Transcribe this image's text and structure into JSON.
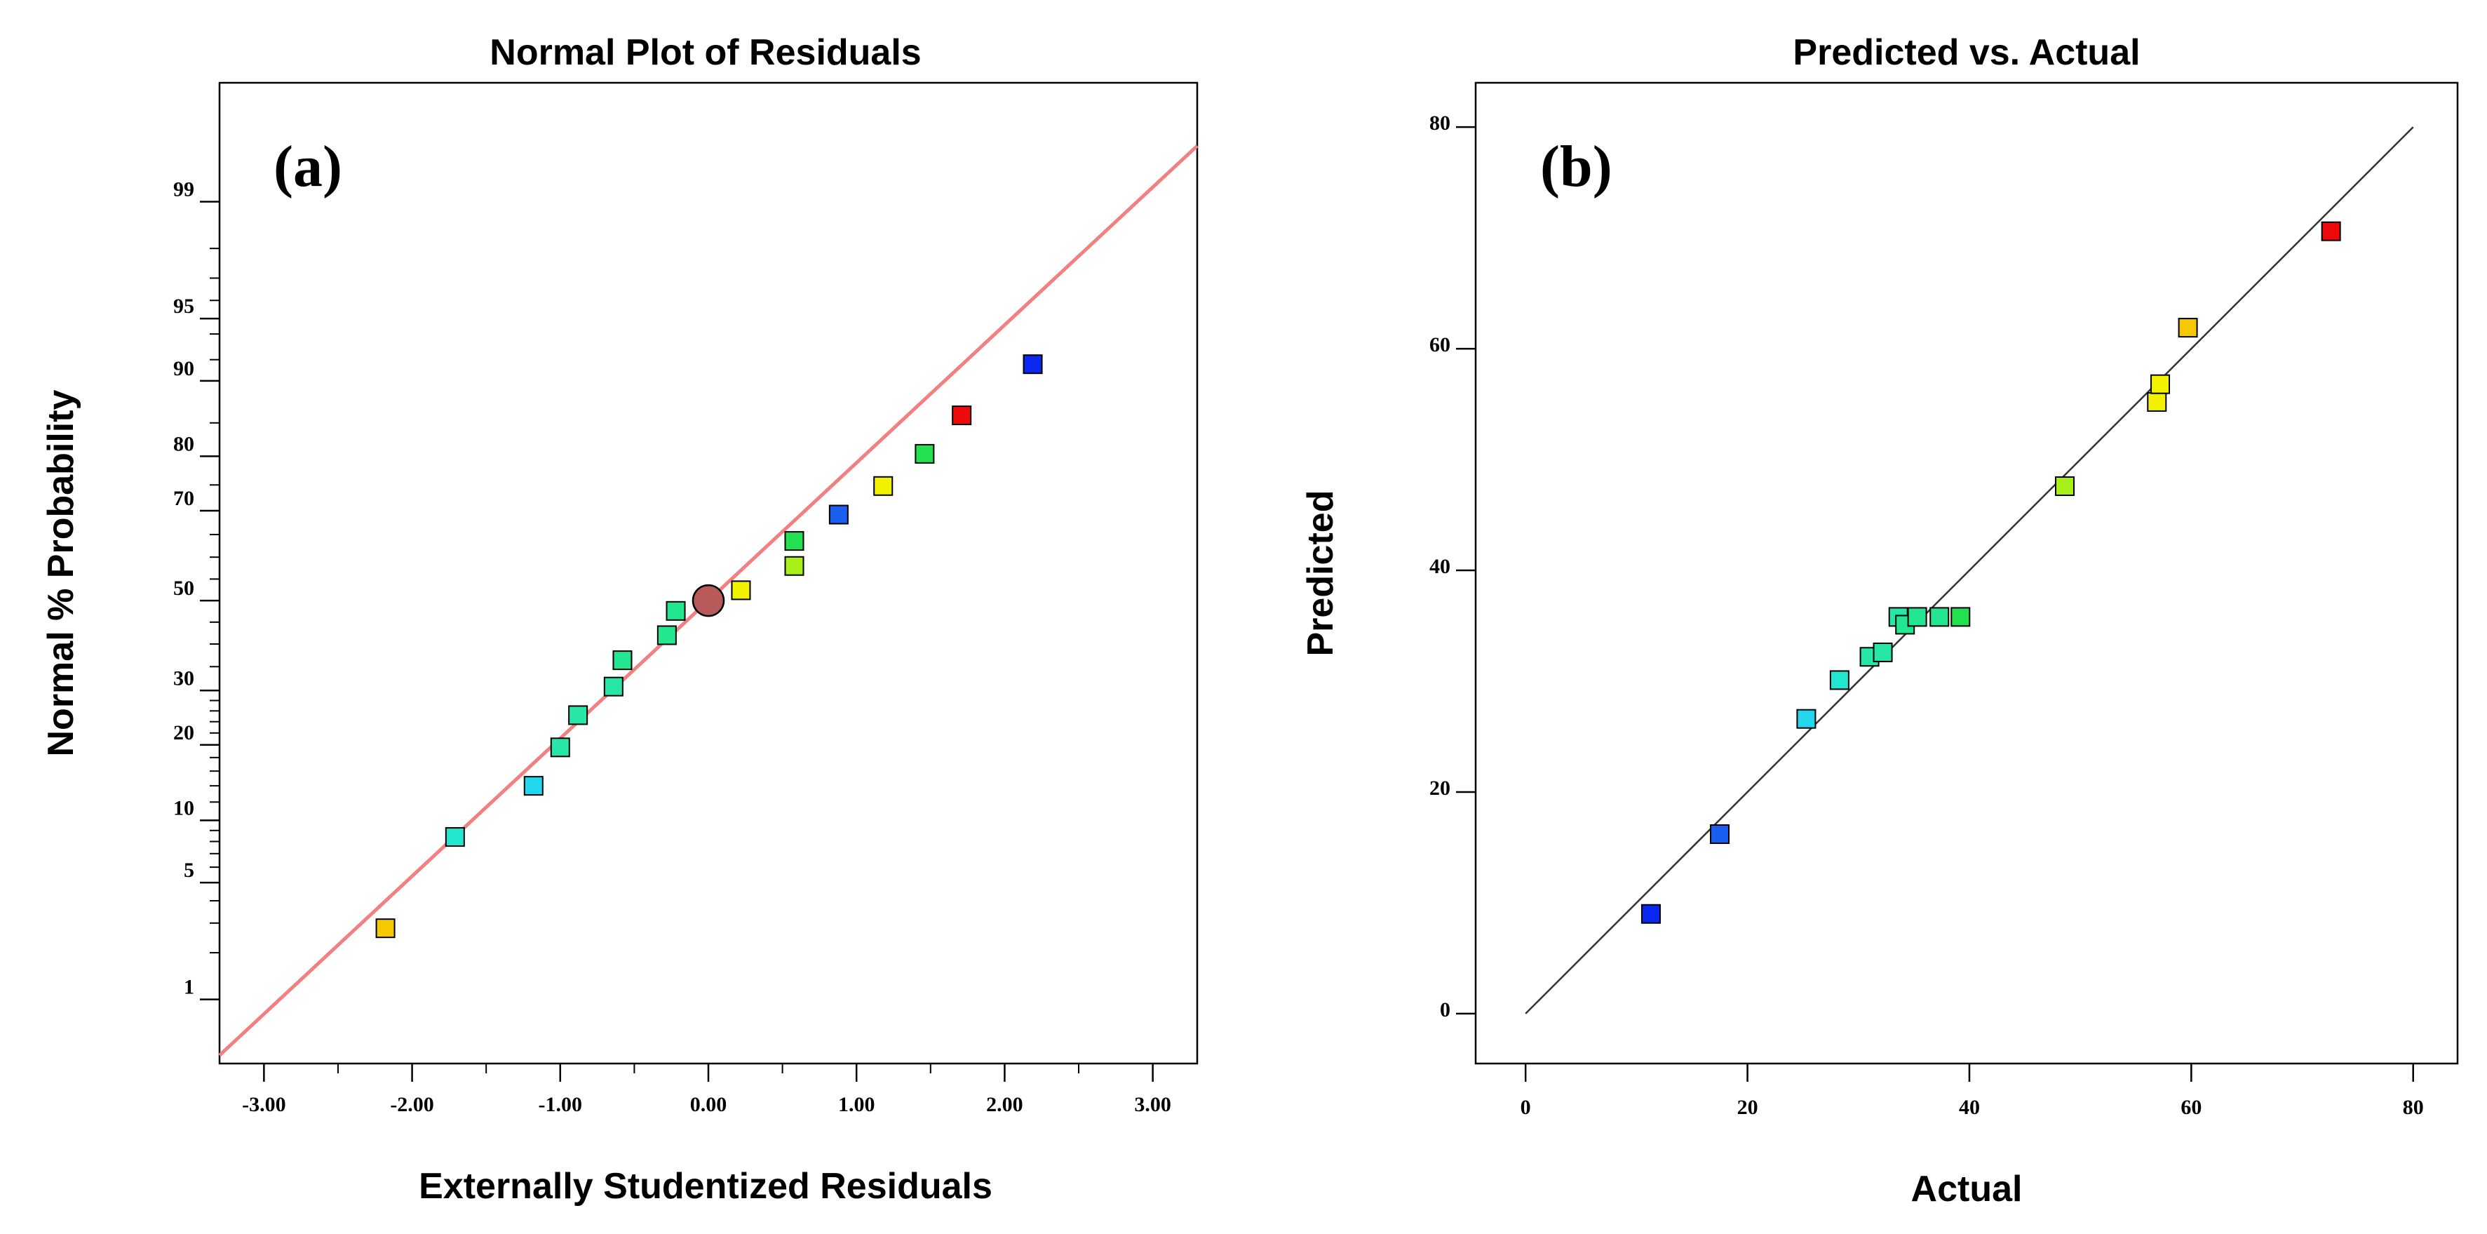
{
  "chart_data": [
    {
      "type": "scatter",
      "panel_label": "(a)",
      "title": "Normal Plot of Residuals",
      "xlabel": "Externally Studentized Residuals",
      "ylabel": "Normal % Probability",
      "xlim": [
        -3.3,
        3.3
      ],
      "xticks": [
        "-3.00",
        "-2.00",
        "-1.00",
        "0.00",
        "1.00",
        "2.00",
        "3.00"
      ],
      "yscale": "normal-probability",
      "yticks": [
        "1",
        "5",
        "10",
        "20",
        "30",
        "50",
        "70",
        "80",
        "90",
        "95",
        "99"
      ],
      "reference_line": {
        "color": "#f28080",
        "from": [
          -3.3,
          0.4
        ],
        "to": [
          3.3,
          99.6
        ]
      },
      "points": [
        {
          "x": -2.18,
          "y": 2.8,
          "color": "#f5c800"
        },
        {
          "x": -1.71,
          "y": 8.4,
          "color": "#22e6d0"
        },
        {
          "x": -1.18,
          "y": 14.0,
          "color": "#22d6ee"
        },
        {
          "x": -1.0,
          "y": 19.6,
          "color": "#28e6a8"
        },
        {
          "x": -0.88,
          "y": 25.2,
          "color": "#28e6a8"
        },
        {
          "x": -0.64,
          "y": 30.8,
          "color": "#28e6a8"
        },
        {
          "x": -0.58,
          "y": 36.4,
          "color": "#22e690"
        },
        {
          "x": -0.28,
          "y": 42.0,
          "color": "#22e690"
        },
        {
          "x": -0.22,
          "y": 47.6,
          "color": "#22e690"
        },
        {
          "x": 0.22,
          "y": 52.4,
          "color": "#f2f200"
        },
        {
          "x": 0.58,
          "y": 58.0,
          "color": "#a8ee18"
        },
        {
          "x": 0.58,
          "y": 63.6,
          "color": "#22e050"
        },
        {
          "x": 0.88,
          "y": 69.2,
          "color": "#1a5ff0"
        },
        {
          "x": 1.18,
          "y": 74.8,
          "color": "#f2f200"
        },
        {
          "x": 1.46,
          "y": 80.4,
          "color": "#22e050"
        },
        {
          "x": 1.71,
          "y": 86.0,
          "color": "#ee0a0a"
        },
        {
          "x": 2.19,
          "y": 91.6,
          "color": "#0a28f0"
        }
      ],
      "center_marker": {
        "x": 0.0,
        "y": 50.0,
        "color": "#b85a5a"
      }
    },
    {
      "type": "scatter",
      "panel_label": "(b)",
      "title": "Predicted vs. Actual",
      "xlabel": "Actual",
      "ylabel": "Predicted",
      "xlim": [
        -4.5,
        84
      ],
      "ylim": [
        -4.5,
        84
      ],
      "xticks": [
        "0",
        "20",
        "40",
        "60",
        "80"
      ],
      "yticks": [
        "0",
        "20",
        "40",
        "60",
        "80"
      ],
      "reference_line": {
        "color": "#333333",
        "from": [
          0,
          0
        ],
        "to": [
          80,
          80
        ]
      },
      "points": [
        {
          "x": 11.3,
          "y": 9.0,
          "color": "#0a28f0"
        },
        {
          "x": 17.5,
          "y": 16.2,
          "color": "#1a5ff0"
        },
        {
          "x": 25.3,
          "y": 26.6,
          "color": "#22d6ee"
        },
        {
          "x": 28.3,
          "y": 30.1,
          "color": "#22e6d0"
        },
        {
          "x": 31.0,
          "y": 32.2,
          "color": "#28e6a8"
        },
        {
          "x": 32.2,
          "y": 32.6,
          "color": "#28e6a8"
        },
        {
          "x": 33.6,
          "y": 35.8,
          "color": "#28e6a8"
        },
        {
          "x": 34.2,
          "y": 35.1,
          "color": "#22e690"
        },
        {
          "x": 35.3,
          "y": 35.8,
          "color": "#22e690"
        },
        {
          "x": 37.3,
          "y": 35.8,
          "color": "#22e690"
        },
        {
          "x": 39.2,
          "y": 35.8,
          "color": "#22e050"
        },
        {
          "x": 48.6,
          "y": 47.6,
          "color": "#a8ee18"
        },
        {
          "x": 56.9,
          "y": 55.2,
          "color": "#f2f200"
        },
        {
          "x": 57.2,
          "y": 56.8,
          "color": "#f2f200"
        },
        {
          "x": 59.7,
          "y": 61.9,
          "color": "#f5c800"
        },
        {
          "x": 72.6,
          "y": 70.6,
          "color": "#ee0a0a"
        }
      ]
    }
  ]
}
